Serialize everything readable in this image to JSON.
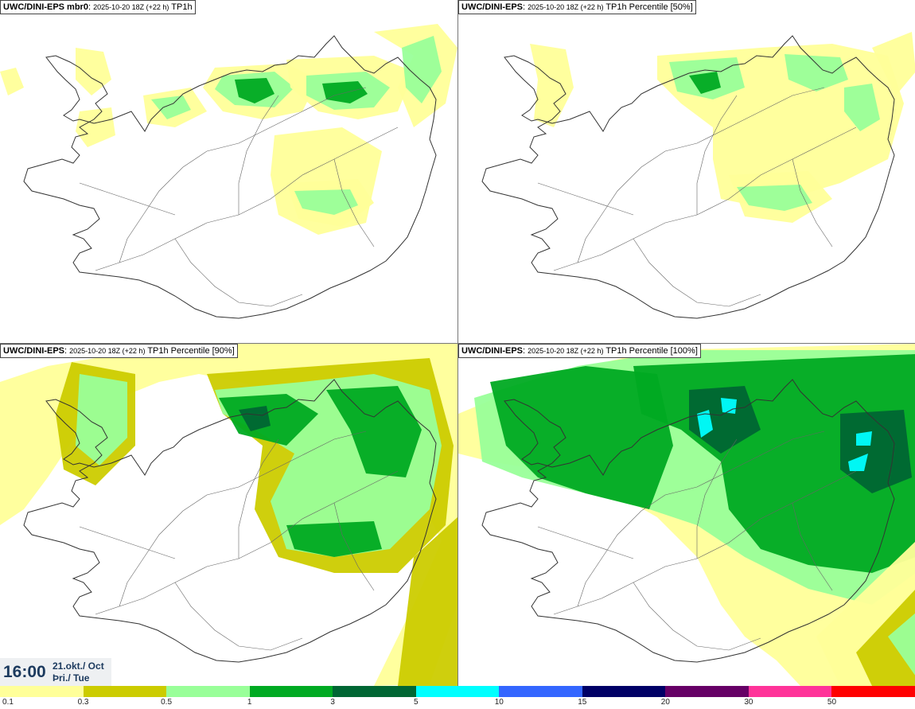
{
  "panels": [
    {
      "model": "UWC/DINI-EPS mbr0",
      "run": "2025-10-20 18Z (+22 h)",
      "field": "TP1h"
    },
    {
      "model": "UWC/DINI-EPS",
      "run": "2025-10-20 18Z (+22 h)",
      "field": "TP1h Percentile [50%]"
    },
    {
      "model": "UWC/DINI-EPS",
      "run": "2025-10-20 18Z (+22 h)",
      "field": "TP1h Percentile [90%]"
    },
    {
      "model": "UWC/DINI-EPS",
      "run": "2025-10-20 18Z (+22 h)",
      "field": "TP1h Percentile [100%]"
    }
  ],
  "valid_time": {
    "time": "16:00",
    "date_line1": "21.okt./ Oct",
    "date_line2": "Þri./ Tue"
  },
  "legend": {
    "labels": [
      "0.1",
      "0.3",
      "0.5",
      "1",
      "3",
      "5",
      "10",
      "15",
      "20",
      "30",
      "50"
    ],
    "colors": [
      "#ffff99",
      "#cccc00",
      "#99ff99",
      "#00aa22",
      "#006633",
      "#00ffff",
      "#3366ff",
      "#000066",
      "#660066",
      "#ff3399",
      "#ff0000"
    ]
  }
}
